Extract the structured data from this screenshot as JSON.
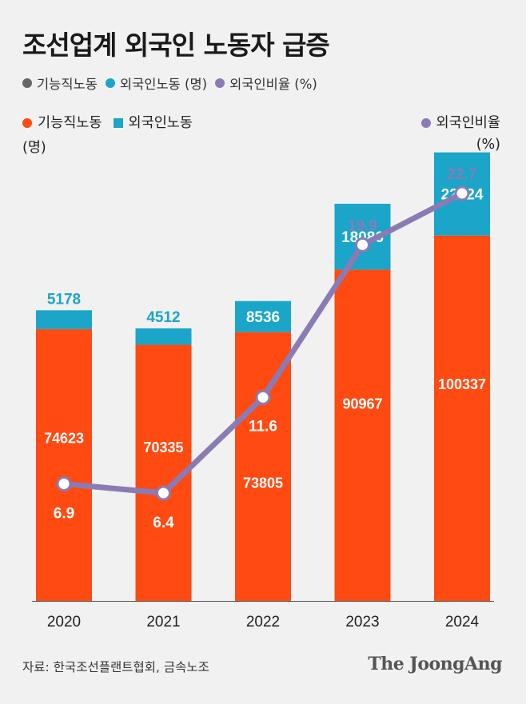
{
  "title": "조선업계 외국인 노동자 급증",
  "legend_top": [
    {
      "label": "기능직노동",
      "color": "#666666"
    },
    {
      "label": "외국인노동 (명)",
      "color": "#1aa5c9"
    },
    {
      "label": "외국인비율 (%)",
      "color": "#8a7bb5"
    }
  ],
  "legend_main": {
    "skilled_label": "기능직노동",
    "foreign_label": "외국인노동",
    "left_unit": "(명)",
    "ratio_label": "외국인비율",
    "right_unit": "(%)"
  },
  "colors": {
    "skilled": "#ff4a12",
    "foreign": "#1aa5c9",
    "ratio": "#8a7bb5",
    "axis": "#555555"
  },
  "chart_data": {
    "type": "bar",
    "stacked": true,
    "categories": [
      "2020",
      "2021",
      "2022",
      "2023",
      "2024"
    ],
    "series": [
      {
        "name": "기능직노동",
        "values": [
          74623,
          70335,
          73805,
          90967,
          100337
        ]
      },
      {
        "name": "외국인노동",
        "values": [
          5178,
          4512,
          8536,
          18086,
          22824
        ]
      }
    ],
    "line_series": {
      "name": "외국인비율",
      "values": [
        6.9,
        6.4,
        11.6,
        19.9,
        22.7
      ]
    },
    "value_labels": {
      "skilled": [
        "74623",
        "70335",
        "73805",
        "90967",
        "100337"
      ],
      "foreign": [
        "5178",
        "4512",
        "8536",
        "18086",
        "22824"
      ],
      "ratio": [
        "6.9",
        "6.4",
        "11.6",
        "19.9",
        "22.7"
      ]
    },
    "left_axis_unit": "(명)",
    "right_axis_unit": "(%)"
  },
  "source": "자료: 한국조선플랜트협회, 금속노조",
  "brand": "The JoongAng"
}
